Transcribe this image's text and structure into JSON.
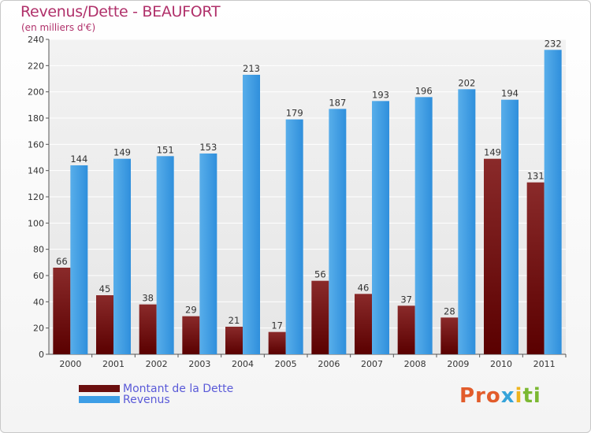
{
  "header": {
    "title": "Revenus/Dette - BEAUFORT",
    "subtitle": "(en milliers d'€)"
  },
  "chart_data": {
    "type": "bar",
    "categories": [
      "2000",
      "2001",
      "2002",
      "2003",
      "2004",
      "2005",
      "2006",
      "2007",
      "2008",
      "2009",
      "2010",
      "2011"
    ],
    "series": [
      {
        "name": "Montant de la Dette",
        "color": "#7a1a1a",
        "values": [
          66,
          45,
          38,
          29,
          21,
          17,
          56,
          46,
          37,
          28,
          149,
          131
        ]
      },
      {
        "name": "Revenus",
        "color": "#3d9ee6",
        "values": [
          144,
          149,
          151,
          153,
          213,
          179,
          187,
          193,
          196,
          202,
          194,
          232
        ]
      }
    ],
    "yticks": [
      0,
      20,
      40,
      60,
      80,
      100,
      120,
      140,
      160,
      180,
      200,
      220,
      240
    ],
    "ylim": [
      0,
      240
    ],
    "grid": true,
    "legend": "bottom-left"
  },
  "legend": {
    "items": [
      {
        "label": "Montant de la Dette",
        "color": "#6b0f0f"
      },
      {
        "label": "Revenus",
        "color": "#3d9ee6"
      }
    ]
  },
  "logo": {
    "parts": [
      "Pro",
      "x",
      "i",
      "ti"
    ]
  }
}
